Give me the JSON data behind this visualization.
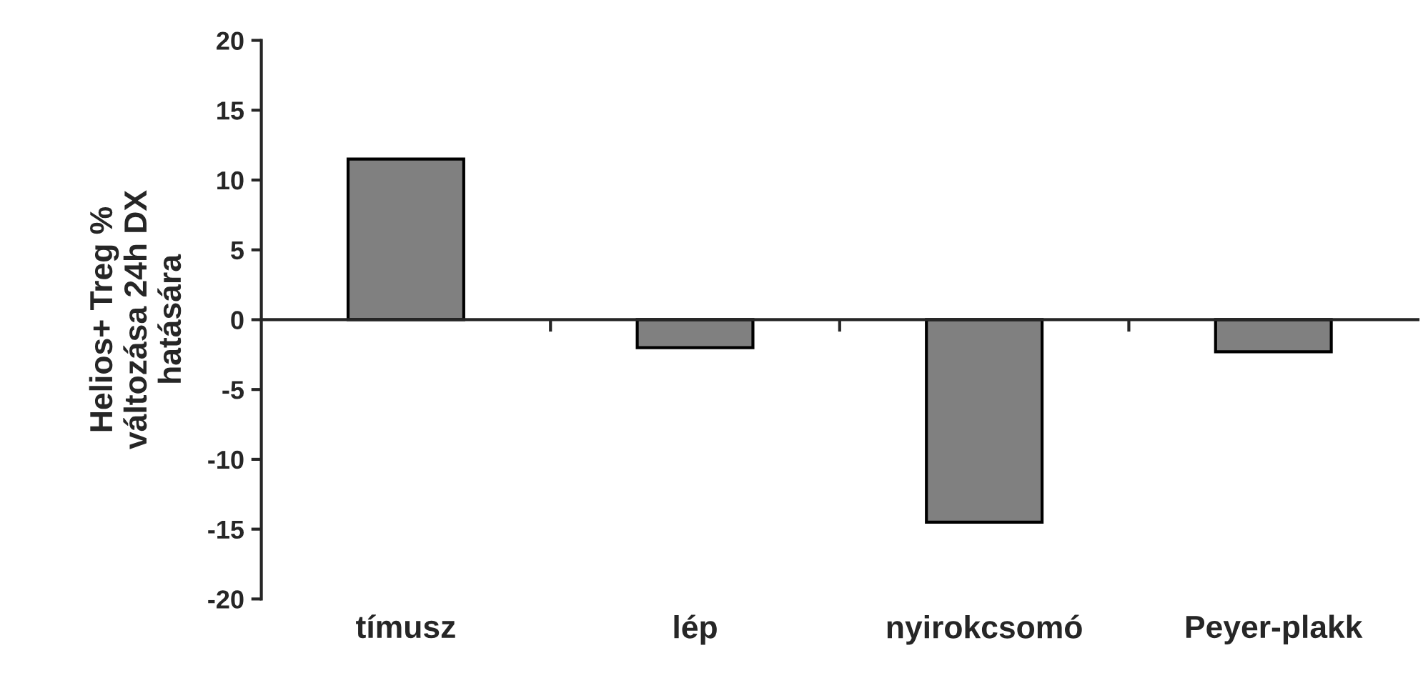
{
  "chart_data": {
    "type": "bar",
    "ylabel": "Helios+ Treg %\nváltozása 24h DX\nhatására",
    "categories": [
      "tímusz",
      "lép",
      "nyirokcsomó",
      "Peyer-plakk"
    ],
    "values": [
      11.5,
      -2.0,
      -14.5,
      -2.3
    ],
    "color": "#808080",
    "ylim": [
      -20,
      20
    ],
    "yticks": [
      -20,
      -15,
      -10,
      -5,
      0,
      5,
      10,
      15,
      20
    ]
  }
}
